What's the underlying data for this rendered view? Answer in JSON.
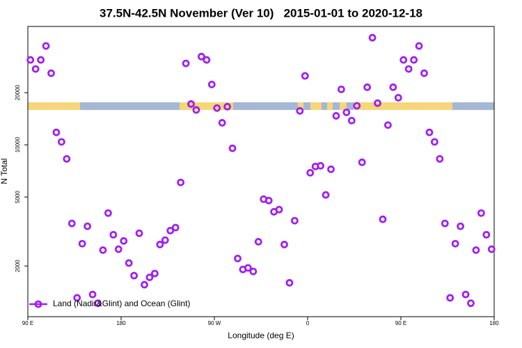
{
  "chart_data": {
    "type": "scatter",
    "title": "37.5N-42.5N November (Ver 10)   2015-01-01 to 2020-12-18",
    "xlabel": "Longitude (deg E)",
    "ylabel": "N Total",
    "log_y": true,
    "grid": false,
    "legend": "bottom-left",
    "xlim": [
      90,
      540
    ],
    "ylim": [
      1020,
      48200
    ],
    "xticks": [
      {
        "value": 90,
        "label": "90 E"
      },
      {
        "value": 180,
        "label": "180"
      },
      {
        "value": 270,
        "label": "90 W"
      },
      {
        "value": 360,
        "label": "0"
      },
      {
        "value": 450,
        "label": "90 E"
      },
      {
        "value": 540,
        "label": "180"
      }
    ],
    "yticks": [
      2000,
      5000,
      10000,
      20000
    ],
    "series": [
      {
        "name": "Land (Nadir&Glint) and Ocean (Glint)",
        "color": "#a020f0",
        "x": [
          92.5,
          97.5,
          102.5,
          107.5,
          112.5,
          117.5,
          122.5,
          127.5,
          132.5,
          137.5,
          142.5,
          147.5,
          152.5,
          157.5,
          162.5,
          167.5,
          172.5,
          177.5,
          182.5,
          187.5,
          192.5,
          197.5,
          202.5,
          207.5,
          212.5,
          217.5,
          222.5,
          227.5,
          232.5,
          237.5,
          242.5,
          247.5,
          252.5,
          257.5,
          262.5,
          267.5,
          272.5,
          277.5,
          282.5,
          287.5,
          292.5,
          297.5,
          302.5,
          307.5,
          312.5,
          317.5,
          322.5,
          327.5,
          332.5,
          337.5,
          342.5,
          347.5,
          352.5,
          357.5,
          362.5,
          367.5,
          372.5,
          377.5,
          382.5,
          387.5,
          392.5,
          397.5,
          402.5,
          407.5,
          412.5,
          417.5,
          422.5,
          427.5,
          432.5,
          437.5,
          442.5,
          447.5,
          452.5,
          457.5,
          462.5,
          467.5,
          472.5,
          477.5,
          482.5,
          487.5,
          492.5,
          497.5,
          502.5,
          507.5,
          512.5,
          517.5,
          522.5,
          527.5,
          532.5,
          537.5
        ],
        "values": [
          30900,
          27400,
          30900,
          37200,
          25900,
          11800,
          10400,
          8300,
          3520,
          1310,
          2690,
          3390,
          1370,
          1220,
          2470,
          4040,
          3030,
          2500,
          2790,
          2080,
          1760,
          3090,
          1560,
          1720,
          1810,
          2660,
          2820,
          3200,
          3330,
          6070,
          29500,
          17200,
          15900,
          32300,
          30900,
          22300,
          16300,
          13400,
          16600,
          9550,
          2210,
          1910,
          1950,
          1860,
          2760,
          4860,
          4770,
          4110,
          4230,
          2660,
          1600,
          3650,
          15700,
          25000,
          6900,
          7500,
          7570,
          5140,
          7230,
          14700,
          20900,
          15400,
          13800,
          16800,
          7930,
          21500,
          41500,
          17400,
          3720,
          13000,
          21500,
          18700,
          30900,
          27400,
          30900,
          37200,
          25900,
          11800,
          10400,
          8300,
          3520,
          1310,
          2690,
          3390,
          1370,
          1220,
          2470,
          4040,
          3030,
          2500
        ]
      }
    ]
  }
}
